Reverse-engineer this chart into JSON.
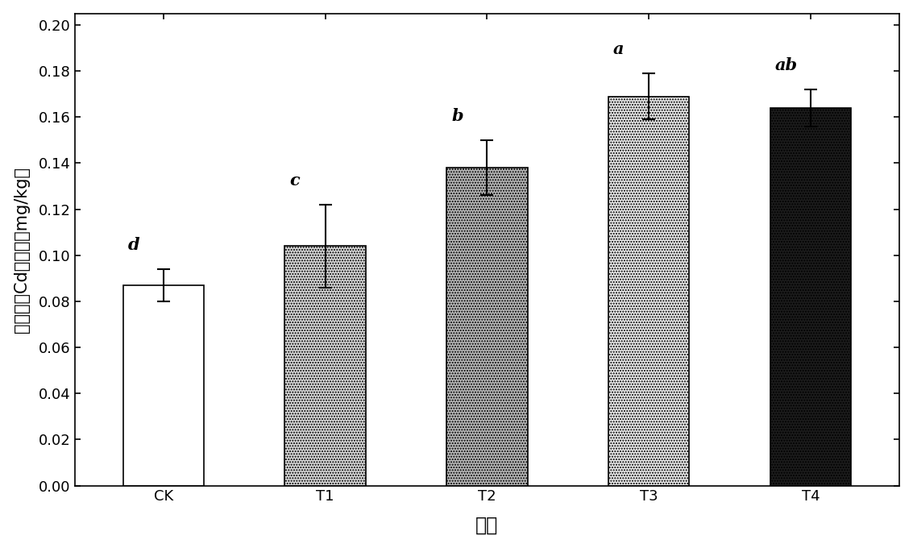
{
  "categories": [
    "CK",
    "T1",
    "T2",
    "T3",
    "T4"
  ],
  "values": [
    0.087,
    0.104,
    0.138,
    0.169,
    0.164
  ],
  "errors": [
    0.007,
    0.018,
    0.012,
    0.01,
    0.008
  ],
  "significance": [
    "d",
    "c",
    "b",
    "a",
    "ab"
  ],
  "bar_width": 0.5,
  "ylabel": "土壤有效Cd减少量（mg/kg）",
  "xlabel": "处理",
  "ylim": [
    0.0,
    0.205
  ],
  "yticks": [
    0.0,
    0.02,
    0.04,
    0.06,
    0.08,
    0.1,
    0.12,
    0.14,
    0.16,
    0.18,
    0.2
  ],
  "ylabel_fontsize": 15,
  "xlabel_fontsize": 17,
  "tick_fontsize": 13,
  "sig_fontsize": 15,
  "background_color": "white",
  "plot_background": "white"
}
